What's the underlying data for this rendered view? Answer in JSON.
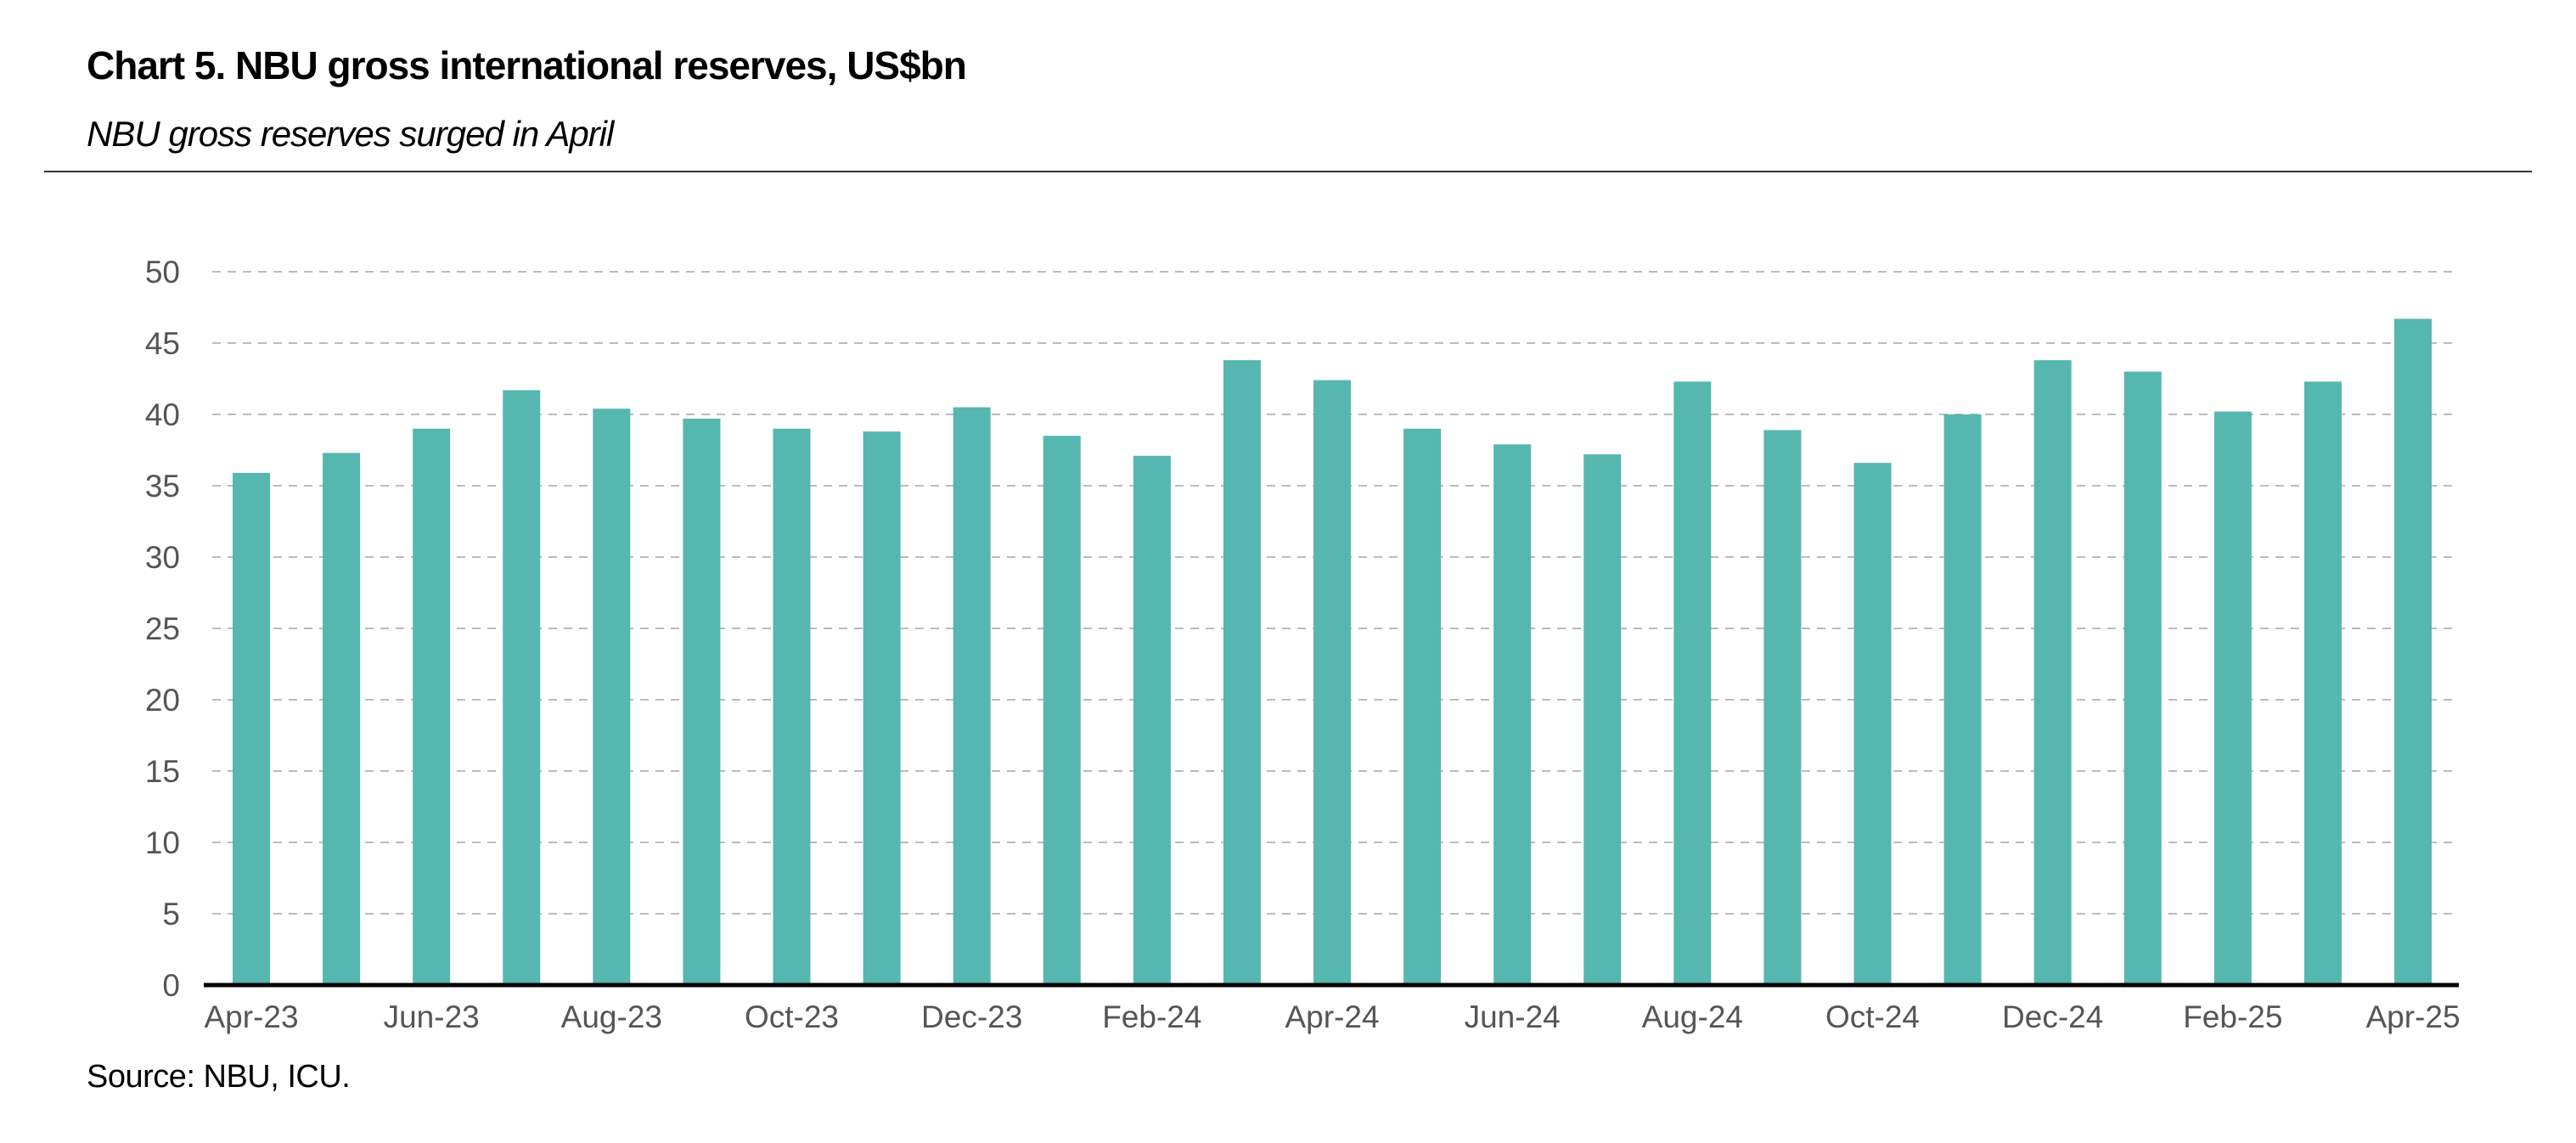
{
  "chart_data": {
    "type": "bar",
    "title": "Chart 5. NBU gross international reserves, US$bn",
    "subtitle": "NBU gross reserves surged in April",
    "source": "Source: NBU, ICU.",
    "categories": [
      "Apr-23",
      "May-23",
      "Jun-23",
      "Jul-23",
      "Aug-23",
      "Sep-23",
      "Oct-23",
      "Nov-23",
      "Dec-23",
      "Jan-24",
      "Feb-24",
      "Mar-24",
      "Apr-24",
      "May-24",
      "Jun-24",
      "Jul-24",
      "Aug-24",
      "Sep-24",
      "Oct-24",
      "Nov-24",
      "Dec-24",
      "Jan-25",
      "Feb-25",
      "Mar-25",
      "Apr-25"
    ],
    "x_tick_labels": [
      "Apr-23",
      "Jun-23",
      "Aug-23",
      "Oct-23",
      "Dec-23",
      "Feb-24",
      "Apr-24",
      "Jun-24",
      "Aug-24",
      "Oct-24",
      "Dec-24",
      "Feb-25",
      "Apr-25"
    ],
    "values": [
      35.9,
      37.3,
      39.0,
      41.7,
      40.4,
      39.7,
      39.0,
      38.8,
      40.5,
      38.5,
      37.1,
      43.8,
      42.4,
      39.0,
      37.9,
      37.2,
      42.3,
      38.9,
      36.6,
      40.0,
      43.8,
      43.0,
      40.2,
      42.3,
      46.7
    ],
    "yticks": [
      0,
      5,
      10,
      15,
      20,
      25,
      30,
      35,
      40,
      45,
      50
    ],
    "ylim": [
      0,
      50
    ],
    "xlabel": "",
    "ylabel": "",
    "grid": true,
    "legend": "none",
    "bar_color": "#55b7b0",
    "grid_color": "#bbbbbb",
    "axis_color": "#000000",
    "tick_label_color": "#555555"
  }
}
